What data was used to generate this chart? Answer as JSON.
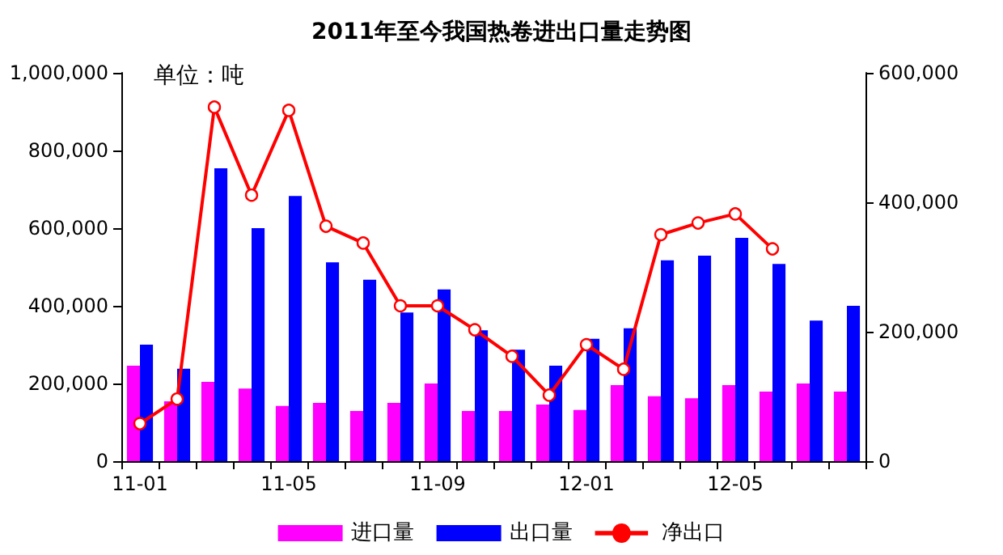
{
  "chart_data": {
    "type": "bar",
    "title": "2011年至今我国热卷进出口量走势图",
    "annotations": [
      "单位：吨"
    ],
    "categories": [
      "11-01",
      null,
      null,
      null,
      "11-05",
      null,
      null,
      null,
      "11-09",
      null,
      null,
      null,
      "12-01",
      null,
      null,
      null,
      "12-05",
      null,
      null,
      null
    ],
    "series": [
      {
        "name": "进口量",
        "color": "#ff00ff",
        "values": [
          246000,
          154000,
          204000,
          187000,
          142000,
          150000,
          129000,
          150000,
          200000,
          129000,
          129000,
          146000,
          132000,
          196000,
          167000,
          162000,
          196000,
          179000,
          200000,
          179000
        ]
      },
      {
        "name": "出口量",
        "color": "#0000ff",
        "values": [
          300000,
          238000,
          754000,
          600000,
          683000,
          512000,
          467000,
          383000,
          442000,
          337000,
          287000,
          246000,
          315000,
          342000,
          517000,
          529000,
          575000,
          508000,
          362000,
          400000
        ]
      },
      {
        "name": "净出口",
        "type": "line",
        "axis": "y2",
        "color": "#ff0000",
        "marker": "circle",
        "line_style": "solid",
        "values": [
          58000,
          96000,
          547000,
          411000,
          542000,
          363000,
          337000,
          240000,
          240000,
          203000,
          162000,
          102000,
          180000,
          142000,
          350000,
          368000,
          382000,
          328000,
          null,
          null
        ]
      }
    ],
    "ylim": [
      0,
      1000000
    ],
    "yticks": [
      0,
      {
        "value": 200000,
        "label": "200,000"
      },
      {
        "value": 400000,
        "label": "400,000"
      },
      {
        "value": 600000,
        "label": "600,000"
      },
      {
        "value": 800000,
        "label": "800,000"
      },
      {
        "value": 1000000,
        "label": "1,000,000"
      }
    ],
    "y2lim": [
      0,
      600000
    ],
    "y2ticks": [
      0,
      {
        "value": 200000,
        "label": "200,000"
      },
      {
        "value": 400000,
        "label": "400,000"
      },
      {
        "value": 600000,
        "label": "600,000"
      }
    ],
    "grid": false,
    "legend": "bottom"
  }
}
